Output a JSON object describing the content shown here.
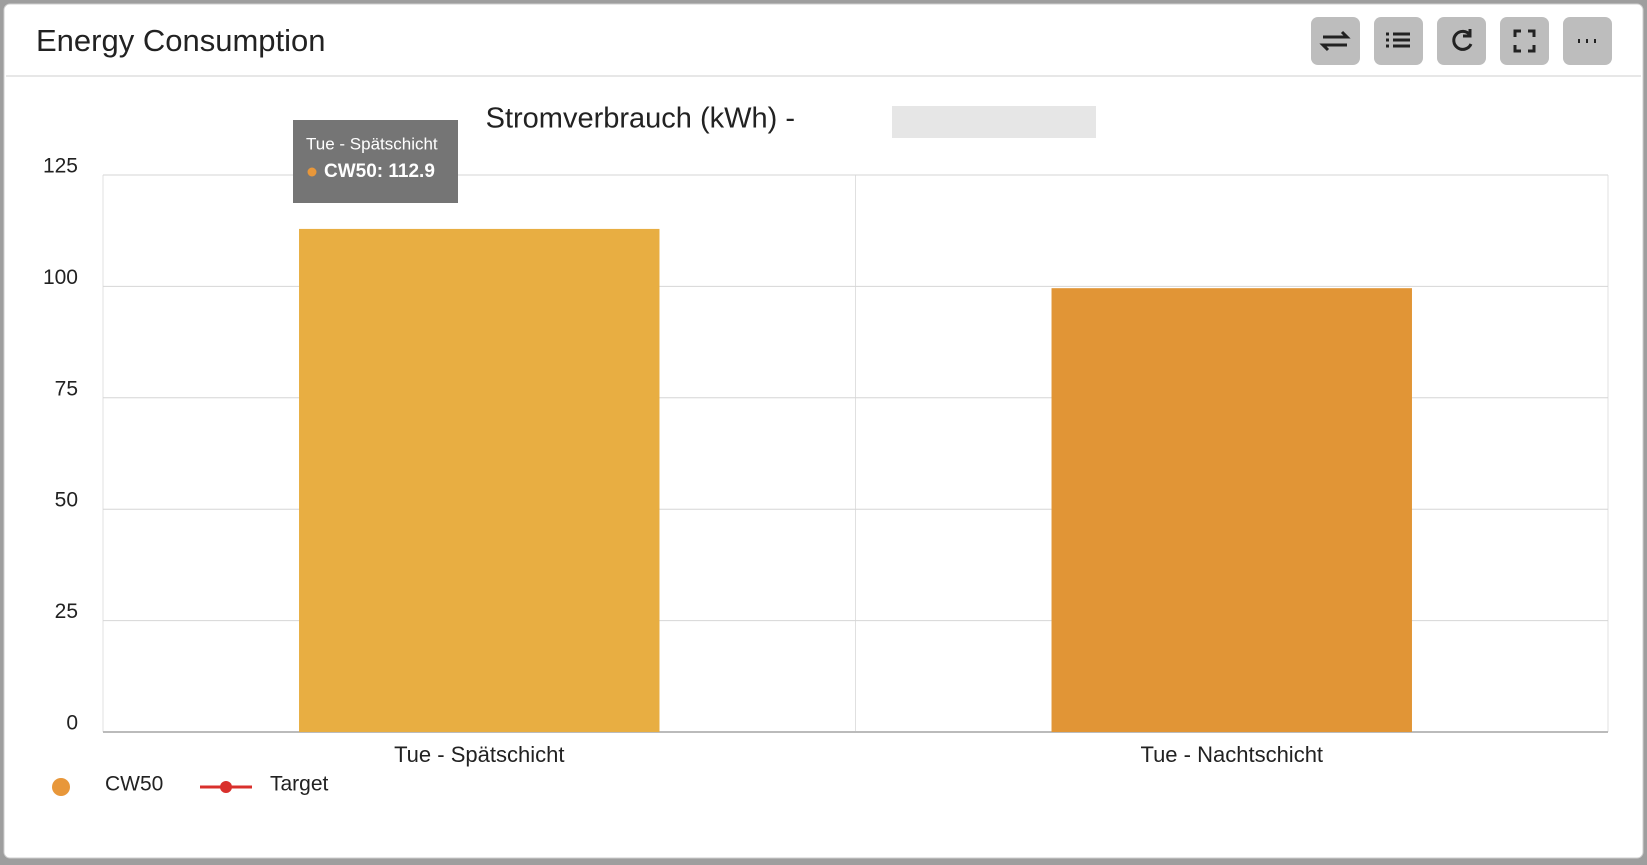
{
  "header": {
    "title": "Energy Consumption"
  },
  "chart_data": {
    "type": "bar",
    "title": "Stromverbrauch (kWh) -",
    "categories": [
      "Tue - Spätschicht",
      "Tue - Nachtschicht"
    ],
    "series": [
      {
        "name": "CW50",
        "type": "bar",
        "color": "#e8973a",
        "bar_colors": [
          "#e8ae42",
          "#e19536"
        ],
        "values": [
          112.9,
          99.6
        ]
      },
      {
        "name": "Target",
        "type": "line",
        "color": "#d9302c",
        "values": [
          null,
          null
        ]
      }
    ],
    "ylim": [
      0,
      125
    ],
    "yticks": [
      0,
      25,
      50,
      75,
      100,
      125
    ],
    "grid": true,
    "legend": "bottom-left",
    "tooltip": {
      "title": "Tue - Spätschicht",
      "label": "CW50: 112.9"
    }
  }
}
